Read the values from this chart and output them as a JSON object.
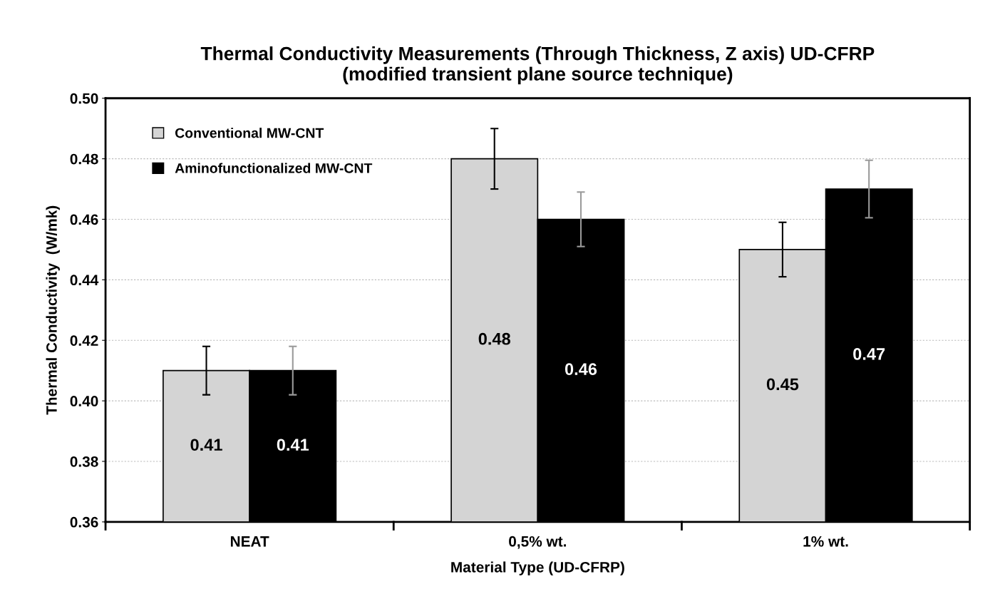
{
  "chart_data": {
    "type": "bar",
    "title": "Thermal Conductivity Measurements (Through Thickness, Z axis) UD-CFRP\n(modified transient plane source technique)",
    "xlabel": "Material Type (UD-CFRP)",
    "ylabel": "Thermal Conductivity  (W/mk)",
    "categories": [
      "NEAT",
      "0,5% wt.",
      "1% wt."
    ],
    "series": [
      {
        "name": "Conventional MW-CNT",
        "color": "#d4d4d4",
        "values": [
          0.41,
          0.48,
          0.45
        ],
        "errors": [
          0.008,
          0.01,
          0.009
        ]
      },
      {
        "name": "Aminofunctionalized MW-CNT",
        "color": "#000000",
        "values": [
          0.41,
          0.46,
          0.47
        ],
        "errors": [
          0.008,
          0.009,
          0.0095
        ]
      }
    ],
    "ylim": [
      0.36,
      0.5
    ],
    "yticks": [
      {
        "value": 0.36,
        "label": "0.36"
      },
      {
        "value": 0.38,
        "label": "0.38"
      },
      {
        "value": 0.4,
        "label": "0.40"
      },
      {
        "value": 0.42,
        "label": "0.42"
      },
      {
        "value": 0.44,
        "label": "0.44"
      },
      {
        "value": 0.46,
        "label": "0.46"
      },
      {
        "value": 0.48,
        "label": "0.48"
      },
      {
        "value": 0.5,
        "label": "0.50"
      }
    ],
    "data_labels": true,
    "grid": "y",
    "legend": "top left"
  }
}
